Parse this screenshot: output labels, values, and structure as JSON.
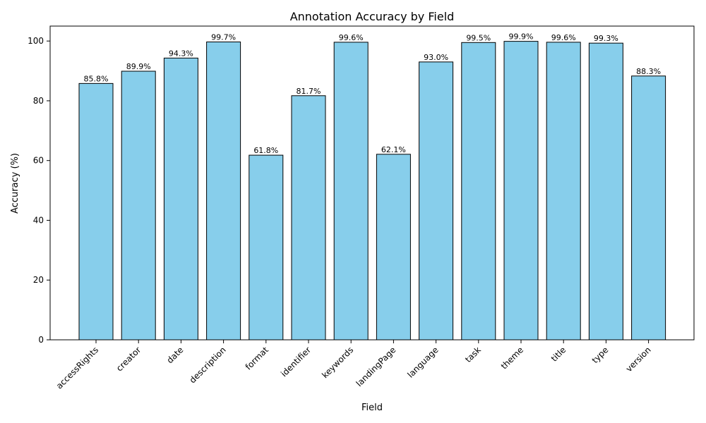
{
  "chart_data": {
    "type": "bar",
    "title": "Annotation Accuracy by Field",
    "xlabel": "Field",
    "ylabel": "Accuracy (%)",
    "ylim": [
      0,
      105
    ],
    "yticks": [
      0,
      20,
      40,
      60,
      80,
      100
    ],
    "grid": false,
    "bar_color": "#87CEEB",
    "edge_color": "#000000",
    "categories": [
      "accessRights",
      "creator",
      "date",
      "description",
      "format",
      "identifier",
      "keywords",
      "landingPage",
      "language",
      "task",
      "theme",
      "title",
      "type",
      "version"
    ],
    "values": [
      85.8,
      89.9,
      94.3,
      99.7,
      61.8,
      81.7,
      99.6,
      62.1,
      93.0,
      99.5,
      99.9,
      99.6,
      99.3,
      88.3
    ],
    "value_labels": [
      "85.8%",
      "89.9%",
      "94.3%",
      "99.7%",
      "61.8%",
      "81.7%",
      "99.6%",
      "62.1%",
      "93.0%",
      "99.5%",
      "99.9%",
      "99.6%",
      "99.3%",
      "88.3%"
    ]
  }
}
